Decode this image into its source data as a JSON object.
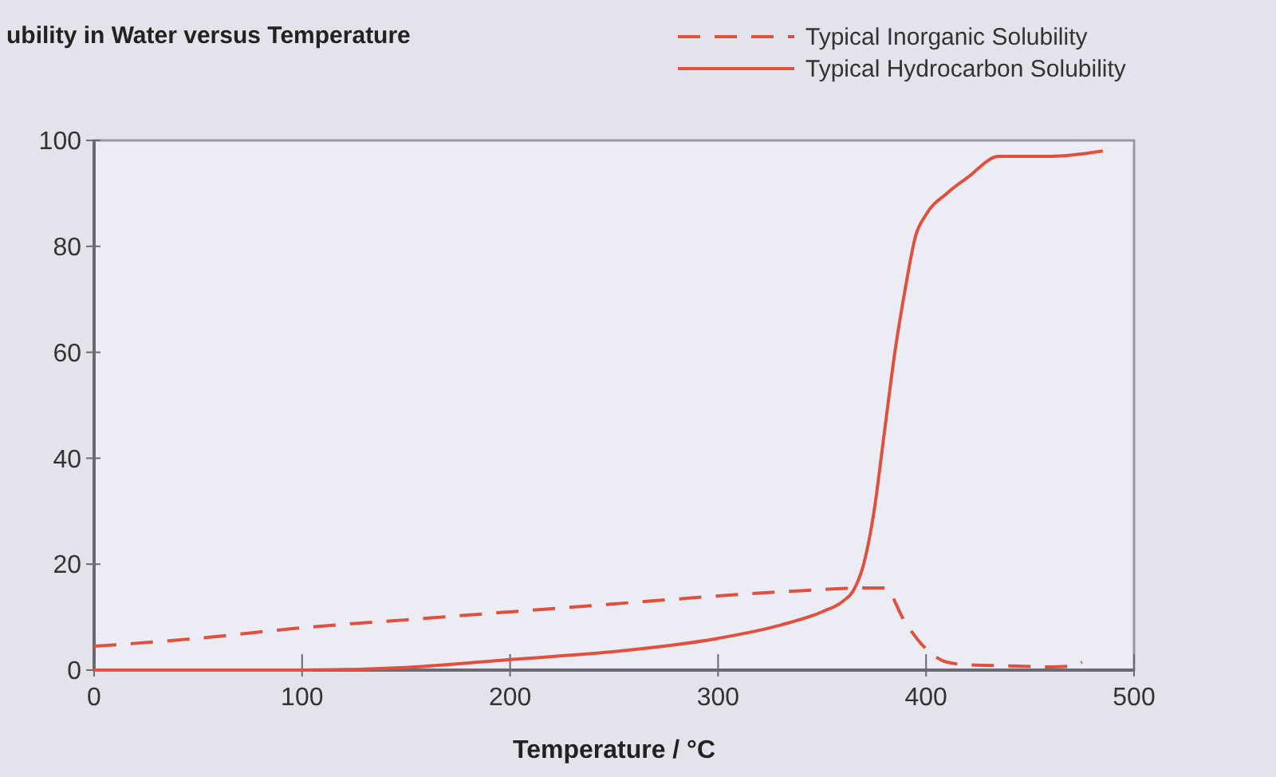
{
  "chart_data": {
    "type": "line",
    "title": "ubility in Water versus Temperature",
    "xlabel": "Temperature / °C",
    "xlim": [
      0,
      500
    ],
    "xticks": [
      0,
      100,
      200,
      300,
      400,
      500
    ],
    "ylim": [
      0,
      100
    ],
    "yticks": [
      0,
      20,
      40,
      60,
      80,
      100
    ],
    "grid": false,
    "legend": "top right",
    "marker": "none",
    "series": [
      {
        "name": "Typical Inorganic Solubility",
        "color": "#e0503c",
        "line_style": "dashed",
        "x": [
          0,
          50,
          100,
          150,
          200,
          250,
          300,
          340,
          370,
          380,
          390,
          400,
          410,
          420,
          440,
          460,
          470,
          475
        ],
        "values": [
          4.5,
          6,
          8,
          9.5,
          11,
          12.5,
          14,
          15,
          15.5,
          15.5,
          9,
          4,
          1.5,
          1,
          0.8,
          0.6,
          0.8,
          1.5
        ]
      },
      {
        "name": "Typical Hydrocarbon Solubility",
        "color": "#e0503c",
        "line_style": "solid",
        "x": [
          0,
          50,
          100,
          150,
          200,
          250,
          300,
          330,
          350,
          360,
          365,
          370,
          375,
          380,
          385,
          390,
          395,
          400,
          410,
          420,
          435,
          460,
          485
        ],
        "values": [
          0,
          0,
          0,
          0.5,
          2,
          3.5,
          6,
          8.5,
          11,
          13,
          15,
          20,
          30,
          45,
          60,
          72,
          82,
          86,
          90,
          93,
          97,
          97,
          98
        ]
      }
    ]
  }
}
